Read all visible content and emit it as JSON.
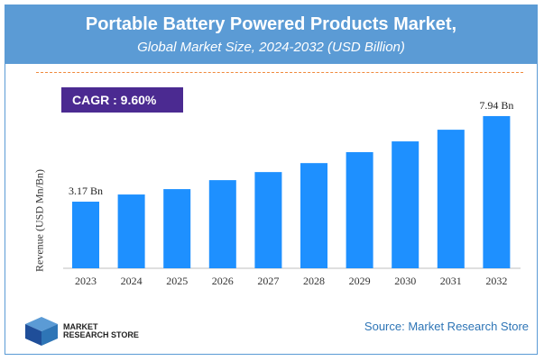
{
  "header": {
    "title": "Portable Battery Powered Products Market,",
    "subtitle": "Global Market Size, 2024-2032 (USD Billion)"
  },
  "cagr": "CAGR :  9.60%",
  "footer": {
    "source": "Source: Market Research Store",
    "logo_line1": "MARKET",
    "logo_line2": "RESEARCH STORE"
  },
  "colors": {
    "header": "#5b9bd5",
    "bar": "#1e90ff",
    "cagr_box": "#4b2a91",
    "source": "#2e75b6"
  },
  "chart_data": {
    "type": "bar",
    "title": "Portable Battery Powered Products Market,",
    "subtitle": "Global Market Size, 2024-2032 (USD Billion)",
    "ylabel": "Revenue (USD Mn/Bn)",
    "xlabel": "",
    "categories": [
      "2023",
      "2024",
      "2025",
      "2026",
      "2027",
      "2028",
      "2029",
      "2030",
      "2031",
      "2032"
    ],
    "values": [
      3.17,
      3.57,
      3.87,
      4.37,
      4.82,
      5.32,
      5.93,
      6.53,
      7.18,
      7.94
    ],
    "data_labels": {
      "0": "3.17 Bn",
      "9": "7.94 Bn"
    },
    "grid": false
  }
}
